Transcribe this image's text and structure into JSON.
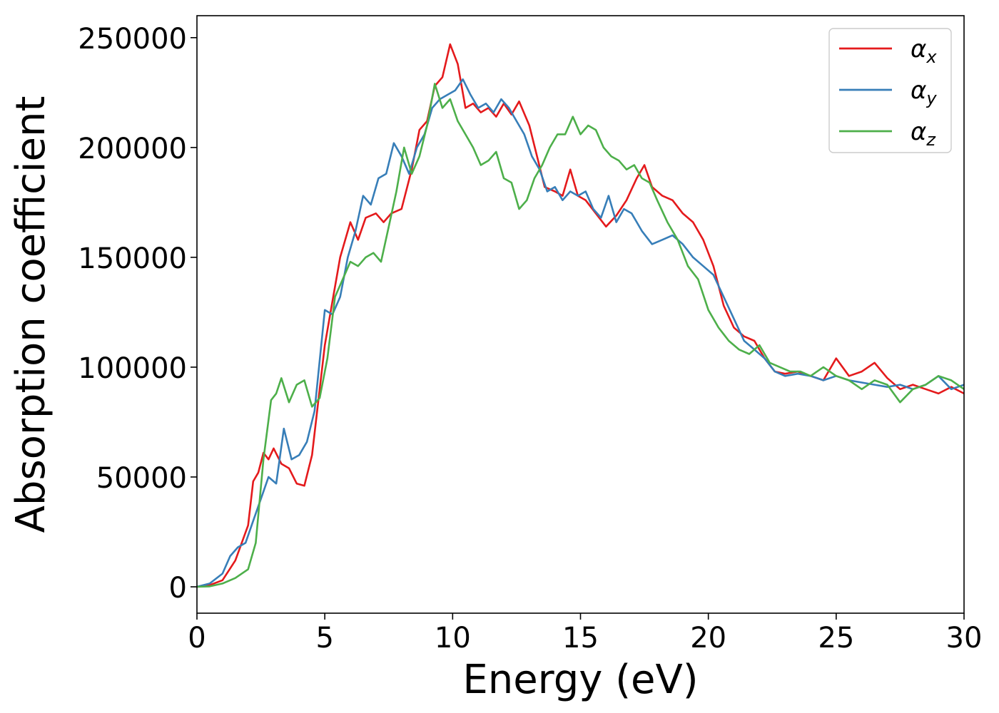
{
  "chart_data": {
    "type": "line",
    "xlabel": "Energy (eV)",
    "ylabel": "Absorption coefficient",
    "xlim": [
      0,
      30
    ],
    "ylim": [
      -12000,
      260000
    ],
    "xticks": [
      0,
      5,
      10,
      15,
      20,
      25,
      30
    ],
    "xtick_labels": [
      "0",
      "5",
      "10",
      "15",
      "20",
      "25",
      "30"
    ],
    "yticks": [
      0,
      50000,
      100000,
      150000,
      200000,
      250000
    ],
    "ytick_labels": [
      "0",
      "50000",
      "100000",
      "150000",
      "200000",
      "250000"
    ],
    "grid": false,
    "legend_position": "top-right",
    "series": [
      {
        "name": "αx",
        "symbol": "α",
        "subscript": "x",
        "color": "#e41a1c",
        "x": [
          0,
          0.5,
          1.0,
          1.5,
          2.0,
          2.2,
          2.4,
          2.6,
          2.8,
          3.0,
          3.3,
          3.6,
          3.9,
          4.2,
          4.5,
          4.8,
          5.0,
          5.3,
          5.6,
          6.0,
          6.3,
          6.6,
          7.0,
          7.3,
          7.6,
          8.0,
          8.4,
          8.7,
          9.0,
          9.3,
          9.6,
          9.9,
          10.2,
          10.5,
          10.8,
          11.1,
          11.4,
          11.7,
          12.0,
          12.3,
          12.6,
          13.0,
          13.3,
          13.6,
          14.0,
          14.3,
          14.6,
          14.9,
          15.2,
          15.6,
          16.0,
          16.4,
          16.8,
          17.2,
          17.5,
          17.8,
          18.2,
          18.6,
          19.0,
          19.4,
          19.8,
          20.2,
          20.6,
          21.0,
          21.4,
          21.8,
          22.2,
          22.6,
          23.0,
          23.5,
          24.0,
          24.5,
          25.0,
          25.5,
          26.0,
          26.5,
          27.0,
          27.5,
          28.0,
          28.5,
          29.0,
          29.5,
          30.0
        ],
        "values": [
          0,
          800,
          3000,
          12000,
          28000,
          48000,
          52000,
          61000,
          58000,
          63000,
          56000,
          54000,
          47000,
          46000,
          60000,
          90000,
          110000,
          130000,
          150000,
          166000,
          158000,
          168000,
          170000,
          166000,
          170000,
          172000,
          190000,
          208000,
          212000,
          228000,
          232000,
          247000,
          238000,
          218000,
          220000,
          216000,
          218000,
          214000,
          220000,
          215000,
          221000,
          210000,
          196000,
          182000,
          180000,
          178000,
          190000,
          178000,
          176000,
          170000,
          164000,
          169000,
          176000,
          186000,
          192000,
          182000,
          178000,
          176000,
          170000,
          166000,
          158000,
          146000,
          128000,
          118000,
          114000,
          112000,
          104000,
          98000,
          97000,
          98000,
          96000,
          94000,
          104000,
          96000,
          98000,
          102000,
          95000,
          90000,
          92000,
          90000,
          88000,
          91000,
          88000
        ]
      },
      {
        "name": "αy",
        "symbol": "α",
        "subscript": "y",
        "color": "#377eb8",
        "x": [
          0,
          0.5,
          1.0,
          1.3,
          1.6,
          1.9,
          2.2,
          2.5,
          2.8,
          3.1,
          3.4,
          3.7,
          4.0,
          4.3,
          4.6,
          5.0,
          5.3,
          5.6,
          5.9,
          6.2,
          6.5,
          6.8,
          7.1,
          7.4,
          7.7,
          8.0,
          8.3,
          8.6,
          8.9,
          9.2,
          9.5,
          9.8,
          10.1,
          10.4,
          10.7,
          11.0,
          11.3,
          11.6,
          11.9,
          12.2,
          12.5,
          12.8,
          13.1,
          13.4,
          13.7,
          14.0,
          14.3,
          14.6,
          14.9,
          15.2,
          15.5,
          15.8,
          16.1,
          16.4,
          16.7,
          17.0,
          17.4,
          17.8,
          18.2,
          18.6,
          19.0,
          19.4,
          19.8,
          20.2,
          20.6,
          21.0,
          21.4,
          21.8,
          22.2,
          22.6,
          23.0,
          23.5,
          24.0,
          24.5,
          25.0,
          25.5,
          26.0,
          26.5,
          27.0,
          27.5,
          28.0,
          28.5,
          29.0,
          29.5,
          30.0
        ],
        "values": [
          0,
          1500,
          6000,
          14000,
          18000,
          20000,
          30000,
          40000,
          50000,
          47000,
          72000,
          58000,
          60000,
          66000,
          80000,
          126000,
          124000,
          132000,
          150000,
          162000,
          178000,
          174000,
          186000,
          188000,
          202000,
          196000,
          188000,
          200000,
          206000,
          218000,
          222000,
          224000,
          226000,
          231000,
          224000,
          218000,
          220000,
          216000,
          222000,
          218000,
          212000,
          206000,
          196000,
          190000,
          180000,
          182000,
          176000,
          180000,
          178000,
          180000,
          172000,
          168000,
          178000,
          166000,
          172000,
          170000,
          162000,
          156000,
          158000,
          160000,
          156000,
          150000,
          146000,
          142000,
          132000,
          122000,
          112000,
          108000,
          104000,
          98000,
          96000,
          97000,
          96000,
          94000,
          96000,
          94000,
          93000,
          92000,
          91000,
          92000,
          90000,
          92000,
          96000,
          90000,
          92000
        ]
      },
      {
        "name": "αz",
        "symbol": "α",
        "subscript": "z",
        "color": "#4daf4a",
        "x": [
          0,
          0.5,
          1.0,
          1.5,
          2.0,
          2.3,
          2.6,
          2.9,
          3.1,
          3.3,
          3.6,
          3.9,
          4.2,
          4.5,
          4.8,
          5.1,
          5.4,
          5.7,
          6.0,
          6.3,
          6.6,
          6.9,
          7.2,
          7.5,
          7.8,
          8.1,
          8.4,
          8.7,
          9.0,
          9.3,
          9.6,
          9.9,
          10.2,
          10.5,
          10.8,
          11.1,
          11.4,
          11.7,
          12.0,
          12.3,
          12.6,
          12.9,
          13.2,
          13.5,
          13.8,
          14.1,
          14.4,
          14.7,
          15.0,
          15.3,
          15.6,
          15.9,
          16.2,
          16.5,
          16.8,
          17.1,
          17.4,
          17.7,
          18.0,
          18.4,
          18.8,
          19.2,
          19.6,
          20.0,
          20.4,
          20.8,
          21.2,
          21.6,
          22.0,
          22.4,
          22.8,
          23.2,
          23.6,
          24.0,
          24.5,
          25.0,
          25.5,
          26.0,
          26.5,
          27.0,
          27.5,
          28.0,
          28.5,
          29.0,
          29.5,
          30.0
        ],
        "values": [
          0,
          200,
          1500,
          4000,
          8000,
          20000,
          58000,
          85000,
          88000,
          95000,
          84000,
          92000,
          94000,
          82000,
          86000,
          104000,
          132000,
          140000,
          148000,
          146000,
          150000,
          152000,
          148000,
          164000,
          180000,
          200000,
          188000,
          196000,
          210000,
          229000,
          218000,
          222000,
          212000,
          206000,
          200000,
          192000,
          194000,
          198000,
          186000,
          184000,
          172000,
          176000,
          186000,
          192000,
          200000,
          206000,
          206000,
          214000,
          206000,
          210000,
          208000,
          200000,
          196000,
          194000,
          190000,
          192000,
          186000,
          184000,
          176000,
          166000,
          158000,
          146000,
          140000,
          126000,
          118000,
          112000,
          108000,
          106000,
          110000,
          102000,
          100000,
          98000,
          98000,
          96000,
          100000,
          96000,
          94000,
          90000,
          94000,
          92000,
          84000,
          90000,
          92000,
          96000,
          94000,
          90000
        ]
      }
    ]
  }
}
